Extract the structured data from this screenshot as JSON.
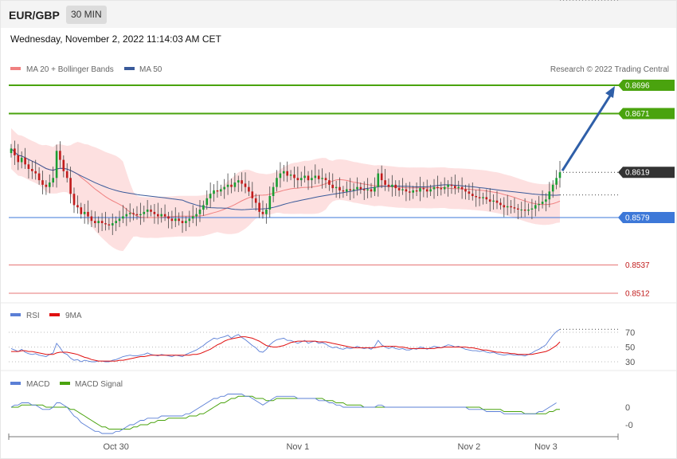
{
  "header": {
    "pair": "EUR/GBP",
    "timeframe": "30 MIN",
    "datetime": "Wednesday, November 2, 2022 11:14:03 AM CET"
  },
  "legend": {
    "ma20": "MA 20 + Bollinger Bands",
    "ma50": "MA 50",
    "credit": "Research © 2022 Trading Central",
    "rsi": "RSI",
    "rsi_ma": "9MA",
    "macd": "MACD",
    "macd_signal": "MACD Signal"
  },
  "colors": {
    "bull": "#1a9e33",
    "bear": "#c11b1b",
    "resistance": "#4aa30e",
    "support": "#3d78d8",
    "lower": "#e04848",
    "current": "#333333",
    "ma20": "#f08080",
    "ma50": "#3a5a9a",
    "band": "#fde0e0",
    "arrow": "#2f5fa8"
  },
  "chart_data": [
    {
      "type": "candlestick",
      "title": "EUR/GBP",
      "x": [
        "Oct 30",
        "Nov 1",
        "Nov 2",
        "Nov 3"
      ],
      "ylim": [
        0.8502,
        0.8702
      ],
      "current_price": "0.8619",
      "levels": [
        {
          "label": "0.8696",
          "value": 0.8696,
          "role": "resistance",
          "tag": "filled"
        },
        {
          "label": "0.8671",
          "value": 0.8671,
          "role": "resistance",
          "tag": "filled"
        },
        {
          "label": "0.8619",
          "value": 0.8619,
          "role": "current",
          "tag": "filled"
        },
        {
          "label": "0.8579",
          "value": 0.8579,
          "role": "support",
          "tag": "filled"
        },
        {
          "label": "0.8537",
          "value": 0.8537,
          "role": "lower",
          "tag": "text"
        },
        {
          "label": "0.8512",
          "value": 0.8512,
          "role": "lower",
          "tag": "text"
        }
      ],
      "closes": [
        0.864,
        0.8634,
        0.8628,
        0.8632,
        0.8626,
        0.8622,
        0.862,
        0.8618,
        0.8612,
        0.8608,
        0.8606,
        0.861,
        0.8614,
        0.8638,
        0.863,
        0.862,
        0.8614,
        0.86,
        0.859,
        0.8588,
        0.8582,
        0.8584,
        0.858,
        0.8576,
        0.8574,
        0.8576,
        0.8574,
        0.8573,
        0.8572,
        0.8574,
        0.8576,
        0.8578,
        0.858,
        0.8582,
        0.8583,
        0.8582,
        0.8581,
        0.8582,
        0.8584,
        0.8586,
        0.8584,
        0.8582,
        0.858,
        0.8582,
        0.858,
        0.8578,
        0.8576,
        0.8578,
        0.8576,
        0.8574,
        0.8576,
        0.8578,
        0.858,
        0.8582,
        0.8586,
        0.859,
        0.8596,
        0.86,
        0.8603,
        0.8602,
        0.8604,
        0.8606,
        0.8608,
        0.8606,
        0.861,
        0.8612,
        0.8609,
        0.8606,
        0.8602,
        0.8596,
        0.8592,
        0.8584,
        0.8582,
        0.8586,
        0.8598,
        0.8606,
        0.8614,
        0.8618,
        0.862,
        0.8616,
        0.8617,
        0.8614,
        0.8612,
        0.8614,
        0.8616,
        0.8612,
        0.8614,
        0.8616,
        0.8613,
        0.8614,
        0.8612,
        0.8608,
        0.8605,
        0.8606,
        0.8603,
        0.8602,
        0.8604,
        0.8603,
        0.8604,
        0.8606,
        0.8604,
        0.8603,
        0.8604,
        0.8602,
        0.8606,
        0.8618,
        0.8612,
        0.8608,
        0.8606,
        0.8608,
        0.8605,
        0.8603,
        0.8604,
        0.8602,
        0.8601,
        0.8603,
        0.8602,
        0.8605,
        0.8604,
        0.8602,
        0.8604,
        0.8606,
        0.8605,
        0.8604,
        0.8606,
        0.8608,
        0.8607,
        0.8605,
        0.8606,
        0.8604,
        0.8602,
        0.86,
        0.8598,
        0.8597,
        0.8596,
        0.8597,
        0.8595,
        0.8593,
        0.8594,
        0.8592,
        0.859,
        0.8588,
        0.8589,
        0.8588,
        0.8587,
        0.8586,
        0.8586,
        0.8585,
        0.8586,
        0.8587,
        0.859,
        0.8591,
        0.8593,
        0.8595,
        0.8602,
        0.8608,
        0.8614,
        0.8619
      ],
      "ma20_ylim": "computed",
      "bollinger": {
        "period": 20,
        "stdev": 2
      },
      "ma50": {
        "period": 50
      }
    },
    {
      "type": "line",
      "title": "RSI",
      "ylim": [
        20,
        80
      ],
      "yticks": [
        {
          "label": "70",
          "value": 70
        },
        {
          "label": "50",
          "value": 50
        },
        {
          "label": "30",
          "value": 30
        }
      ],
      "series": [
        {
          "name": "RSI",
          "values": [
            48,
            46,
            44,
            47,
            43,
            41,
            40,
            41,
            39,
            38,
            37,
            40,
            42,
            55,
            49,
            42,
            40,
            35,
            32,
            33,
            30,
            32,
            31,
            30,
            30,
            31,
            31,
            30,
            30,
            32,
            33,
            35,
            37,
            38,
            39,
            38,
            38,
            39,
            40,
            42,
            40,
            39,
            38,
            40,
            39,
            38,
            37,
            39,
            38,
            37,
            40,
            42,
            44,
            46,
            49,
            52,
            56,
            59,
            62,
            61,
            63,
            64,
            66,
            62,
            65,
            67,
            63,
            60,
            56,
            52,
            49,
            44,
            43,
            47,
            53,
            57,
            60,
            61,
            62,
            59,
            59,
            57,
            55,
            57,
            59,
            55,
            57,
            58,
            55,
            56,
            54,
            51,
            49,
            50,
            48,
            47,
            49,
            48,
            49,
            51,
            49,
            48,
            49,
            47,
            51,
            59,
            53,
            50,
            48,
            50,
            48,
            47,
            48,
            46,
            46,
            48,
            47,
            50,
            49,
            47,
            49,
            51,
            50,
            49,
            51,
            53,
            52,
            50,
            51,
            49,
            47,
            46,
            45,
            45,
            44,
            45,
            43,
            42,
            43,
            41,
            40,
            39,
            40,
            40,
            39,
            39,
            39,
            38,
            40,
            42,
            45,
            47,
            50,
            53,
            60,
            66,
            71,
            74
          ]
        },
        {
          "name": "9MA",
          "values": [
            44,
            44,
            44,
            45,
            45,
            44,
            44,
            43,
            42,
            41,
            40,
            40,
            40,
            42,
            43,
            43,
            43,
            42,
            41,
            40,
            38,
            36,
            35,
            33,
            32,
            31,
            31,
            31,
            31,
            31,
            31,
            32,
            32,
            33,
            34,
            35,
            36,
            37,
            37,
            38,
            39,
            39,
            39,
            39,
            39,
            39,
            39,
            39,
            39,
            39,
            39,
            39,
            40,
            40,
            41,
            43,
            45,
            47,
            50,
            53,
            55,
            58,
            60,
            61,
            62,
            63,
            64,
            64,
            63,
            62,
            60,
            58,
            55,
            52,
            51,
            50,
            50,
            51,
            52,
            54,
            56,
            57,
            58,
            58,
            58,
            58,
            58,
            58,
            57,
            57,
            57,
            56,
            55,
            54,
            53,
            52,
            51,
            50,
            49,
            49,
            49,
            49,
            49,
            49,
            49,
            50,
            51,
            51,
            51,
            51,
            51,
            50,
            50,
            49,
            48,
            48,
            48,
            48,
            48,
            48,
            48,
            48,
            49,
            49,
            50,
            50,
            50,
            50,
            50,
            50,
            50,
            49,
            49,
            48,
            47,
            46,
            46,
            45,
            44,
            43,
            43,
            42,
            42,
            41,
            41,
            40,
            40,
            40,
            40,
            40,
            41,
            42,
            43,
            44,
            46,
            49,
            52,
            57
          ]
        }
      ]
    },
    {
      "type": "line",
      "title": "MACD",
      "yticks": [
        {
          "label": "0",
          "value": 0
        },
        {
          "label": "-0",
          "value": -0.0008
        }
      ],
      "ylim": [
        -0.0013,
        0.001
      ],
      "series": [
        {
          "name": "MACD",
          "values": [
            0.0,
            0.0001,
            0.0001,
            0.0002,
            0.0002,
            0.0002,
            0.0001,
            0.0001,
            0.0,
            -0.0001,
            -0.0001,
            -0.0001,
            0.0,
            0.0002,
            0.0002,
            0.0001,
            0.0,
            -0.0002,
            -0.0004,
            -0.0005,
            -0.0007,
            -0.0008,
            -0.0009,
            -0.001,
            -0.0011,
            -0.0011,
            -0.0012,
            -0.0012,
            -0.0012,
            -0.0012,
            -0.0011,
            -0.0011,
            -0.001,
            -0.0009,
            -0.0008,
            -0.0008,
            -0.0007,
            -0.0006,
            -0.0006,
            -0.0005,
            -0.0005,
            -0.0005,
            -0.0005,
            -0.0004,
            -0.0004,
            -0.0004,
            -0.0004,
            -0.0004,
            -0.0004,
            -0.0004,
            -0.0003,
            -0.0003,
            -0.0002,
            -0.0001,
            0.0,
            0.0001,
            0.0002,
            0.0003,
            0.0004,
            0.0004,
            0.0005,
            0.0005,
            0.0006,
            0.0006,
            0.0006,
            0.0006,
            0.0006,
            0.0005,
            0.0005,
            0.0004,
            0.0003,
            0.0002,
            0.0001,
            0.0002,
            0.0003,
            0.0004,
            0.0005,
            0.0005,
            0.0005,
            0.0005,
            0.0005,
            0.0005,
            0.0004,
            0.0004,
            0.0004,
            0.0004,
            0.0004,
            0.0004,
            0.0003,
            0.0003,
            0.0003,
            0.0002,
            0.0002,
            0.0001,
            0.0001,
            0.0,
            0.0,
            0.0,
            0.0,
            0.0,
            0.0,
            0.0,
            0.0,
            -0.0,
            -0.0,
            0.0001,
            0.0001,
            0.0,
            0.0,
            0.0,
            0.0,
            0.0,
            -0.0,
            -0.0,
            -0.0,
            -0.0,
            -0.0,
            -0.0,
            -0.0,
            -0.0,
            -0.0,
            0.0,
            0.0,
            0.0,
            0.0,
            0.0,
            0.0,
            0.0,
            0.0,
            -0.0,
            -0.0,
            -0.0001,
            -0.0001,
            -0.0001,
            -0.0001,
            -0.0001,
            -0.0002,
            -0.0002,
            -0.0002,
            -0.0002,
            -0.0002,
            -0.0003,
            -0.0003,
            -0.0003,
            -0.0003,
            -0.0003,
            -0.0003,
            -0.0003,
            -0.0003,
            -0.0003,
            -0.0003,
            -0.0002,
            -0.0002,
            -0.0001,
            0.0,
            0.0001,
            0.0002
          ]
        },
        {
          "name": "MACD Signal",
          "values": [
            0.0,
            0.0,
            0.0,
            0.0001,
            0.0001,
            0.0001,
            0.0001,
            0.0001,
            0.0001,
            0.0001,
            0.0,
            0.0,
            0.0,
            0.0,
            0.0,
            0.0,
            0.0,
            -0.0001,
            -0.0001,
            -0.0002,
            -0.0003,
            -0.0004,
            -0.0005,
            -0.0006,
            -0.0007,
            -0.0008,
            -0.0009,
            -0.0009,
            -0.001,
            -0.001,
            -0.001,
            -0.001,
            -0.001,
            -0.001,
            -0.001,
            -0.0009,
            -0.0009,
            -0.0008,
            -0.0008,
            -0.0008,
            -0.0007,
            -0.0007,
            -0.0006,
            -0.0006,
            -0.0006,
            -0.0005,
            -0.0005,
            -0.0005,
            -0.0005,
            -0.0005,
            -0.0005,
            -0.0004,
            -0.0004,
            -0.0004,
            -0.0003,
            -0.0003,
            -0.0002,
            -0.0001,
            0.0,
            0.0001,
            0.0002,
            0.0002,
            0.0003,
            0.0004,
            0.0004,
            0.0005,
            0.0005,
            0.0005,
            0.0005,
            0.0005,
            0.0004,
            0.0004,
            0.0004,
            0.0003,
            0.0003,
            0.0003,
            0.0004,
            0.0004,
            0.0004,
            0.0004,
            0.0004,
            0.0004,
            0.0004,
            0.0004,
            0.0004,
            0.0004,
            0.0004,
            0.0004,
            0.0004,
            0.0004,
            0.0003,
            0.0003,
            0.0003,
            0.0002,
            0.0002,
            0.0002,
            0.0001,
            0.0001,
            0.0001,
            0.0001,
            0.0001,
            0.0,
            0.0,
            0.0,
            0.0,
            0.0,
            0.0,
            0.0,
            0.0,
            0.0,
            0.0,
            0.0,
            0.0,
            0.0,
            0.0,
            -0.0,
            -0.0,
            -0.0,
            -0.0,
            -0.0,
            -0.0,
            -0.0,
            -0.0,
            -0.0,
            -0.0,
            -0.0,
            0.0,
            0.0,
            0.0,
            0.0,
            0.0,
            -0.0,
            -0.0,
            -0.0,
            -0.0,
            -0.0001,
            -0.0001,
            -0.0001,
            -0.0001,
            -0.0001,
            -0.0001,
            -0.0002,
            -0.0002,
            -0.0002,
            -0.0002,
            -0.0002,
            -0.0002,
            -0.0003,
            -0.0003,
            -0.0003,
            -0.0003,
            -0.0003,
            -0.0003,
            -0.0003,
            -0.0002,
            -0.0002,
            -0.0001,
            -0.0001
          ]
        }
      ]
    }
  ],
  "xaxis": {
    "labels": [
      {
        "label": "Oct 30",
        "index": 30
      },
      {
        "label": "Nov 1",
        "index": 82
      },
      {
        "label": "Nov 2",
        "index": 131
      },
      {
        "label": "Nov 3",
        "index": 153
      }
    ]
  }
}
